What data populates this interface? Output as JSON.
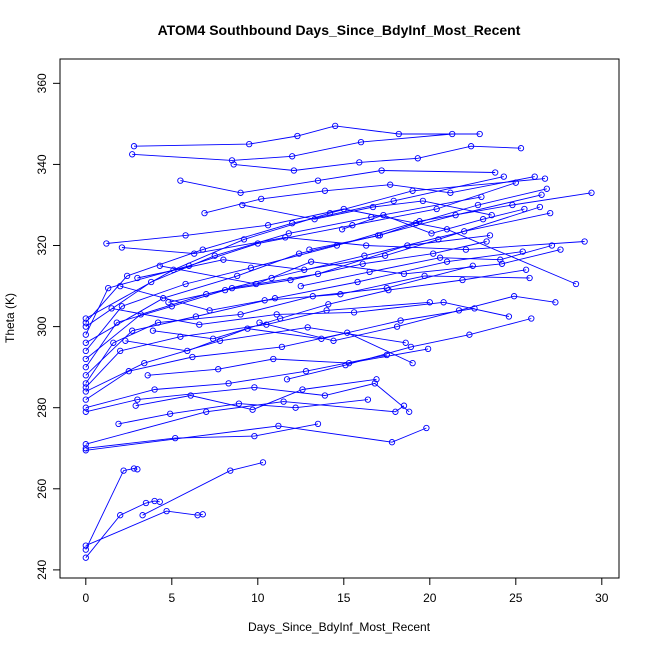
{
  "chart_data": {
    "type": "line",
    "title": "ATOM4 Southbound Days_Since_BdyInf_Most_Recent",
    "xlabel": "Days_Since_BdyInf_Most_Recent",
    "ylabel": "Theta (K)",
    "xlim": [
      -1.5,
      31
    ],
    "ylim": [
      238,
      366
    ],
    "xticks": [
      0,
      5,
      10,
      15,
      20,
      25,
      30
    ],
    "yticks": [
      240,
      260,
      280,
      300,
      320,
      340,
      360
    ],
    "xtick_labels": [
      "0",
      "5",
      "10",
      "15",
      "20",
      "25",
      "30"
    ],
    "ytick_labels": [
      "240",
      "260",
      "280",
      "300",
      "320",
      "340",
      "360"
    ],
    "grid": false,
    "legend": "none",
    "color": "#0000ff",
    "marker": "open-circle",
    "series": [
      {
        "x": [
          0,
          2.0,
          3.5,
          4.0,
          4.3
        ],
        "y": [
          243,
          253.5,
          256.5,
          257.0,
          256.8
        ]
      },
      {
        "x": [
          0,
          4.7,
          6.5,
          6.8
        ],
        "y": [
          246,
          254.5,
          253.5,
          253.7
        ]
      },
      {
        "x": [
          0,
          2.2,
          2.8,
          3.0
        ],
        "y": [
          245,
          264.5,
          265.0,
          264.8
        ]
      },
      {
        "x": [
          3.3,
          8.4,
          10.3
        ],
        "y": [
          253.5,
          264.5,
          266.5
        ]
      },
      {
        "x": [
          0,
          5.2,
          9.8,
          13.5
        ],
        "y": [
          270,
          272.5,
          273.0,
          276.0
        ]
      },
      {
        "x": [
          0,
          11.2,
          17.8,
          19.8
        ],
        "y": [
          269.5,
          275.5,
          271.5,
          275.0
        ]
      },
      {
        "x": [
          0,
          7.0,
          11.5,
          18.0,
          18.5
        ],
        "y": [
          271,
          279.0,
          281.5,
          279.0,
          280.5
        ]
      },
      {
        "x": [
          0,
          3.0,
          9.8,
          13.9,
          16.8,
          18.8
        ],
        "y": [
          279,
          282.0,
          285.0,
          283.0,
          286.0,
          279.0
        ]
      },
      {
        "x": [
          0,
          4.0,
          8.3,
          12.8,
          17.5
        ],
        "y": [
          280,
          284.5,
          286.0,
          289.0,
          293.0
        ]
      },
      {
        "x": [
          0,
          2.5,
          6.2,
          11.4,
          15.2,
          19.0
        ],
        "y": [
          282,
          289.0,
          292.5,
          295.0,
          298.5,
          291.0
        ]
      },
      {
        "x": [
          0,
          3.4,
          7.8,
          12.9,
          18.6
        ],
        "y": [
          284,
          291.0,
          296.5,
          299.8,
          296.0
        ]
      },
      {
        "x": [
          0,
          2.0,
          5.5,
          10.5,
          14.0,
          20.0
        ],
        "y": [
          285,
          294.0,
          297.5,
          300.5,
          304.0,
          306.0
        ]
      },
      {
        "x": [
          0,
          1.6,
          4.2,
          9.0,
          13.2,
          17.5,
          22.5
        ],
        "y": [
          286,
          296.0,
          301.0,
          303.0,
          307.5,
          309.5,
          315.0
        ]
      },
      {
        "x": [
          0,
          2.7,
          6.4,
          11.0,
          15.8,
          21.0,
          25.4
        ],
        "y": [
          288,
          299.0,
          302.5,
          307.0,
          311.0,
          316.0,
          318.5
        ]
      },
      {
        "x": [
          0,
          1.8,
          5.0,
          8.5,
          13.5,
          18.7,
          23.5
        ],
        "y": [
          290,
          301.0,
          305.0,
          309.5,
          313.0,
          320.0,
          322.5
        ]
      },
      {
        "x": [
          0,
          3.2,
          7.0,
          10.8,
          16.2,
          22.0,
          27.0
        ],
        "y": [
          292,
          303.0,
          308.0,
          312.0,
          317.5,
          323.5,
          328.0
        ]
      },
      {
        "x": [
          0,
          2.1,
          5.8,
          9.6,
          14.6,
          19.4,
          24.8,
          29.4
        ],
        "y": [
          294,
          305.0,
          310.5,
          314.5,
          320.0,
          326.0,
          330.0,
          333.0
        ]
      },
      {
        "x": [
          0,
          4.5,
          8.8,
          12.4,
          17.0,
          21.5,
          26.5
        ],
        "y": [
          296,
          307.0,
          312.5,
          318.0,
          322.5,
          327.5,
          332.5
        ]
      },
      {
        "x": [
          0,
          1.3,
          6.0,
          10.0,
          15.5,
          20.4,
          25.0
        ],
        "y": [
          298,
          309.5,
          315.0,
          320.5,
          325.0,
          329.0,
          335.5
        ]
      },
      {
        "x": [
          0,
          3.8,
          7.5,
          11.8,
          16.6,
          23.0
        ],
        "y": [
          300,
          311.0,
          317.5,
          323.0,
          327.0,
          332.0
        ]
      },
      {
        "x": [
          0,
          2.4,
          6.8,
          12.0,
          17.9,
          24.3
        ],
        "y": [
          301,
          312.5,
          319.0,
          325.5,
          331.0,
          337.0
        ]
      },
      {
        "x": [
          0,
          5.1,
          9.2,
          14.2,
          19.0,
          26.7
        ],
        "y": [
          302,
          314.0,
          321.5,
          328.0,
          333.5,
          336.5
        ]
      },
      {
        "x": [
          1.2,
          5.8,
          10.6,
          15.0,
          21.0,
          28.5
        ],
        "y": [
          320.5,
          322.5,
          325.0,
          329.0,
          324.0,
          310.5
        ]
      },
      {
        "x": [
          2.1,
          6.3,
          11.6,
          16.3,
          22.1,
          29.0
        ],
        "y": [
          319.5,
          318.0,
          322.0,
          320.0,
          319.0,
          321.0
        ]
      },
      {
        "x": [
          2.8,
          9.5,
          12.3,
          14.5,
          18.2,
          22.9
        ],
        "y": [
          344.5,
          345.0,
          347.0,
          349.5,
          347.5,
          347.5
        ]
      },
      {
        "x": [
          2.7,
          8.5,
          12.0,
          16.0,
          21.3
        ],
        "y": [
          342.5,
          341.0,
          342.0,
          345.5,
          347.5
        ]
      },
      {
        "x": [
          5.5,
          9.0,
          13.5,
          17.2,
          23.8
        ],
        "y": [
          336.0,
          333.0,
          336.0,
          338.5,
          338.0
        ]
      },
      {
        "x": [
          3.0,
          8.0,
          12.7,
          17.4,
          20.5,
          26.4
        ],
        "y": [
          312.0,
          316.5,
          314.0,
          317.5,
          321.5,
          329.5
        ]
      },
      {
        "x": [
          4.3,
          9.9,
          13.1,
          18.5,
          24.2,
          27.6
        ],
        "y": [
          315.0,
          310.5,
          316.0,
          313.0,
          315.5,
          319.0
        ]
      },
      {
        "x": [
          2.0,
          7.2,
          10.4,
          14.8,
          19.7,
          25.8
        ],
        "y": [
          310.0,
          304.0,
          306.5,
          308.0,
          312.5,
          312.0
        ]
      },
      {
        "x": [
          1.5,
          6.6,
          11.1,
          15.6,
          20.8,
          24.6
        ],
        "y": [
          304.5,
          300.5,
          303.0,
          303.5,
          306.0,
          302.5
        ]
      },
      {
        "x": [
          2.3,
          5.9,
          9.4,
          13.7,
          18.3,
          22.6
        ],
        "y": [
          296.5,
          294.0,
          299.5,
          297.0,
          301.5,
          304.5
        ]
      },
      {
        "x": [
          3.6,
          7.7,
          10.9,
          15.3,
          19.9
        ],
        "y": [
          288.0,
          289.5,
          292.0,
          291.0,
          294.5
        ]
      },
      {
        "x": [
          2.9,
          6.1,
          9.7,
          12.6,
          16.9
        ],
        "y": [
          280.5,
          283.0,
          279.5,
          284.5,
          287.0
        ]
      },
      {
        "x": [
          1.9,
          4.9,
          8.9,
          12.2,
          16.4
        ],
        "y": [
          276.0,
          278.5,
          281.0,
          280.0,
          282.0
        ]
      },
      {
        "x": [
          3.9,
          7.4,
          11.3,
          14.1,
          17.6,
          21.9,
          25.6
        ],
        "y": [
          299.0,
          297.0,
          302.0,
          305.5,
          309.0,
          311.5,
          314.0
        ]
      },
      {
        "x": [
          4.8,
          8.1,
          11.9,
          16.1,
          20.2,
          23.3
        ],
        "y": [
          306.0,
          309.0,
          311.5,
          315.5,
          318.0,
          321.0
        ]
      },
      {
        "x": [
          6.9,
          10.2,
          13.9,
          17.7,
          21.2,
          26.1
        ],
        "y": [
          328.0,
          331.5,
          333.5,
          335.0,
          333.0,
          337.0
        ]
      },
      {
        "x": [
          8.6,
          12.1,
          15.9,
          19.3,
          22.4,
          25.3
        ],
        "y": [
          340.0,
          338.5,
          340.5,
          341.5,
          344.5,
          344.0
        ]
      },
      {
        "x": [
          9.1,
          13.3,
          16.7,
          19.6,
          23.6
        ],
        "y": [
          330.0,
          326.5,
          329.5,
          331.0,
          327.5
        ]
      },
      {
        "x": [
          10.1,
          14.4,
          18.1,
          21.7,
          24.9,
          27.3
        ],
        "y": [
          301.0,
          296.5,
          300.0,
          304.0,
          307.5,
          306.0
        ]
      },
      {
        "x": [
          11.7,
          15.1,
          18.9,
          22.3,
          25.9
        ],
        "y": [
          287.0,
          290.5,
          295.0,
          298.0,
          302.0
        ]
      },
      {
        "x": [
          12.5,
          16.5,
          20.6,
          24.1,
          27.1
        ],
        "y": [
          310.0,
          313.5,
          317.0,
          316.5,
          320.0
        ]
      },
      {
        "x": [
          13.0,
          17.1,
          19.2,
          22.8,
          26.8
        ],
        "y": [
          319.0,
          322.5,
          325.5,
          330.0,
          334.0
        ]
      },
      {
        "x": [
          14.9,
          17.3,
          20.1,
          23.1,
          25.5
        ],
        "y": [
          324.0,
          327.5,
          323.0,
          326.5,
          329.0
        ]
      }
    ]
  }
}
